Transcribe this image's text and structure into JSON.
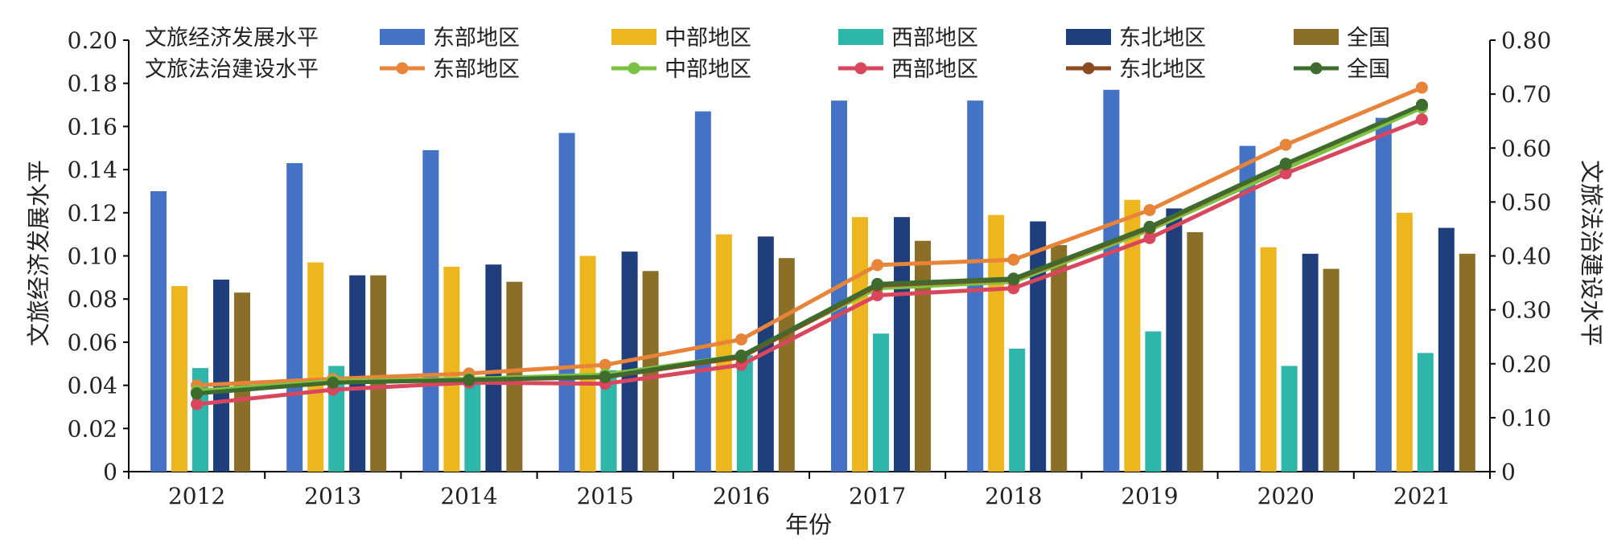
{
  "chart_data": {
    "type": "bar",
    "x_axis": {
      "label": "年份",
      "categories": [
        "2012",
        "2013",
        "2014",
        "2015",
        "2016",
        "2017",
        "2018",
        "2019",
        "2020",
        "2021"
      ]
    },
    "y_left": {
      "label": "文旅经济发展水平",
      "ylim": [
        0,
        0.2
      ],
      "ticks": [
        "0",
        "0.02",
        "0.04",
        "0.06",
        "0.08",
        "0.10",
        "0.12",
        "0.14",
        "0.16",
        "0.18",
        "0.20"
      ]
    },
    "y_right": {
      "label": "文旅法治建设水平",
      "ylim": [
        0,
        0.8
      ],
      "ticks": [
        "0",
        "0.10",
        "0.20",
        "0.30",
        "0.40",
        "0.50",
        "0.60",
        "0.70",
        "0.80"
      ]
    },
    "legend": {
      "placement": "top",
      "bar_group_title": "文旅经济发展水平",
      "line_group_title": "文旅法治建设水平"
    },
    "bar_series": [
      {
        "name": "东部地区",
        "color": "#4472C4",
        "values": [
          0.13,
          0.143,
          0.149,
          0.157,
          0.167,
          0.172,
          0.172,
          0.177,
          0.151,
          0.164
        ]
      },
      {
        "name": "中部地区",
        "color": "#EDB51E",
        "values": [
          0.086,
          0.097,
          0.095,
          0.1,
          0.11,
          0.118,
          0.119,
          0.126,
          0.104,
          0.12
        ]
      },
      {
        "name": "西部地区",
        "color": "#2FB6AB",
        "values": [
          0.048,
          0.049,
          0.044,
          0.047,
          0.054,
          0.064,
          0.057,
          0.065,
          0.049,
          0.055
        ]
      },
      {
        "name": "东北地区",
        "color": "#1F3E7C",
        "values": [
          0.089,
          0.091,
          0.096,
          0.102,
          0.109,
          0.118,
          0.116,
          0.122,
          0.101,
          0.113
        ]
      },
      {
        "name": "全国",
        "color": "#8B6F29",
        "values": [
          0.083,
          0.091,
          0.088,
          0.093,
          0.099,
          0.107,
          0.105,
          0.111,
          0.094,
          0.101
        ]
      }
    ],
    "line_series": [
      {
        "name": "东部地区",
        "color": "#E8843A",
        "values": [
          0.16,
          0.172,
          0.182,
          0.198,
          0.245,
          0.383,
          0.393,
          0.485,
          0.606,
          0.712
        ]
      },
      {
        "name": "中部地区",
        "color": "#7CC242",
        "values": [
          0.15,
          0.168,
          0.172,
          0.18,
          0.215,
          0.34,
          0.352,
          0.448,
          0.562,
          0.675
        ]
      },
      {
        "name": "西部地区",
        "color": "#D9475E",
        "values": [
          0.125,
          0.152,
          0.165,
          0.163,
          0.198,
          0.327,
          0.34,
          0.433,
          0.553,
          0.653
        ]
      },
      {
        "name": "东北地区",
        "color": "#8B4A1F",
        "values": [
          0.145,
          0.165,
          0.17,
          0.175,
          0.212,
          0.345,
          0.356,
          0.452,
          0.57,
          0.68
        ]
      },
      {
        "name": "全国",
        "color": "#3E6B2E",
        "values": [
          0.145,
          0.165,
          0.17,
          0.176,
          0.215,
          0.348,
          0.358,
          0.454,
          0.571,
          0.68
        ]
      }
    ]
  }
}
